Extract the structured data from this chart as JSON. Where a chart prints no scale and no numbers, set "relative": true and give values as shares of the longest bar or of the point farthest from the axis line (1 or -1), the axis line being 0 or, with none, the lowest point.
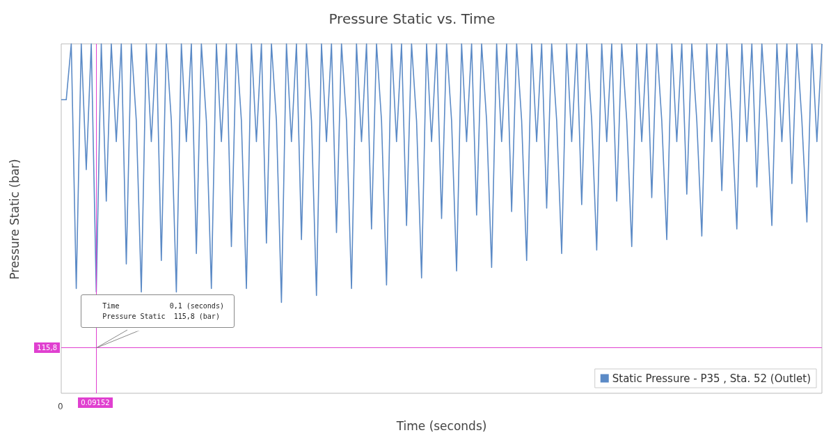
{
  "chart_data": {
    "type": "line",
    "title": "Pressure Static vs. Time",
    "xlabel": "Time (seconds)",
    "ylabel": "Pressure Static (bar)",
    "relative": true,
    "legend": "bottom right",
    "categories": [
      null,
      null,
      null,
      null,
      null,
      null,
      null,
      null,
      null,
      null,
      null,
      null,
      null,
      null,
      null,
      null,
      null,
      null,
      null,
      null,
      null,
      null,
      null,
      null,
      null,
      null,
      null,
      null,
      null,
      null,
      null,
      null,
      null,
      null,
      null,
      null,
      null,
      null,
      null,
      null,
      null,
      null,
      null,
      null,
      null,
      null,
      null,
      null,
      null,
      null,
      null,
      null,
      null,
      null,
      null,
      null,
      null,
      null,
      null,
      null,
      null,
      null,
      null,
      null,
      null,
      null,
      null,
      null,
      null,
      null,
      null,
      null,
      null,
      null,
      null,
      null,
      null,
      null,
      null,
      null,
      null,
      null,
      null,
      null,
      null,
      null,
      null,
      null,
      null,
      null,
      null,
      null,
      null,
      null,
      null,
      null,
      null,
      null,
      null,
      null,
      null,
      null,
      null,
      null,
      null,
      null,
      null,
      null,
      null,
      null,
      null,
      null,
      null,
      null,
      null,
      null,
      null,
      null,
      null,
      null,
      null,
      null,
      null,
      null,
      null,
      null,
      null,
      null,
      null,
      null,
      null,
      null,
      null,
      null,
      null,
      null,
      null,
      null,
      null,
      null,
      null,
      null,
      null,
      null,
      null,
      null,
      null,
      null,
      null,
      null,
      null,
      null,
      null
    ],
    "series": [
      {
        "name": "Static Pressure - P35 , Sta. 52 (Outlet)",
        "color": "#5b8ac6",
        "values": [
          0.84,
          0.84,
          1,
          0.3,
          1,
          0.64,
          1,
          0.29,
          1,
          0.55,
          1,
          0.72,
          1,
          0.37,
          1,
          0.78,
          0.29,
          1,
          0.72,
          1,
          0.38,
          1,
          0.78,
          0.29,
          1,
          0.72,
          1,
          0.4,
          1,
          0.78,
          0.3,
          1,
          0.72,
          1,
          0.42,
          1,
          0.78,
          0.3,
          1,
          0.72,
          1,
          0.43,
          1,
          0.78,
          0.26,
          1,
          0.72,
          1,
          0.44,
          1,
          0.78,
          0.28,
          1,
          0.72,
          1,
          0.46,
          1,
          0.78,
          0.3,
          1,
          0.72,
          1,
          0.47,
          1,
          0.78,
          0.31,
          1,
          0.72,
          1,
          0.48,
          1,
          0.78,
          0.33,
          1,
          0.72,
          1,
          0.5,
          1,
          0.78,
          0.35,
          1,
          0.72,
          1,
          0.51,
          1,
          0.78,
          0.36,
          1,
          0.72,
          1,
          0.52,
          1,
          0.78,
          0.38,
          1,
          0.72,
          1,
          0.53,
          1,
          0.78,
          0.4,
          1,
          0.72,
          1,
          0.54,
          1,
          0.78,
          0.41,
          1,
          0.72,
          1,
          0.55,
          1,
          0.78,
          0.42,
          1,
          0.72,
          1,
          0.56,
          1,
          0.78,
          0.44,
          1,
          0.72,
          1,
          0.57,
          1,
          0.78,
          0.45,
          1,
          0.72,
          1,
          0.58,
          1,
          0.78,
          0.47,
          1,
          0.72,
          1,
          0.59,
          1,
          0.78,
          0.48,
          1,
          0.72,
          1,
          0.6,
          1,
          0.78,
          0.49,
          1,
          0.72,
          1
        ]
      }
    ],
    "ref_lines": [
      {
        "axis": "y",
        "value": 0.128,
        "color": "#e040d0"
      }
    ],
    "annotations": [
      "Time            0,1 (seconds)\nPressure Static  115,8 (bar)",
      "115,8",
      "0.09152",
      "0"
    ]
  }
}
